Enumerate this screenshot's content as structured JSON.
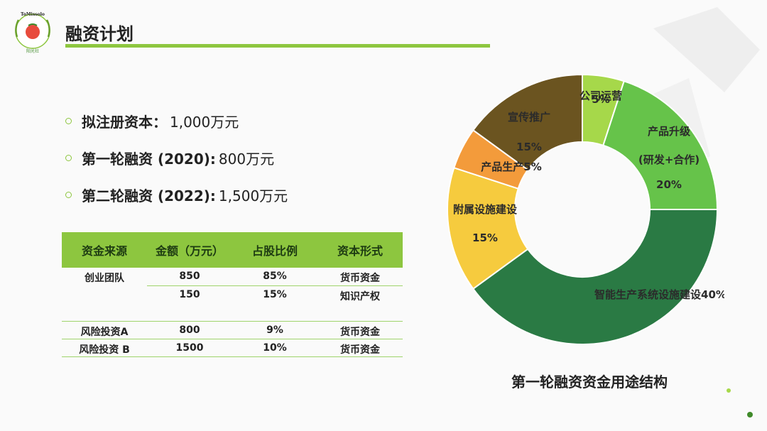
{
  "logo": {
    "top_text": "ToMissolo",
    "bottom_text": "阳光社"
  },
  "page": {
    "title": "融资计划"
  },
  "bullets": [
    {
      "label": "拟注册资本：",
      "value": "1,000万元"
    },
    {
      "label": "第一轮融资 (2020):",
      "value": "800万元"
    },
    {
      "label": "第二轮融资 (2022):",
      "value": "1,500万元"
    }
  ],
  "table": {
    "headers": [
      "资金来源",
      "金额（万元）",
      "占股比例",
      "资本形式"
    ],
    "rows": [
      {
        "source": "创业团队",
        "amount": "850",
        "ratio": "85%",
        "form": "货币资金"
      },
      {
        "source": "",
        "amount": "150",
        "ratio": "15%",
        "form": "知识产权"
      },
      {
        "source": "风险投资A",
        "amount": "800",
        "ratio": "9%",
        "form": "货币资金"
      },
      {
        "source": "风险投资 B",
        "amount": "1500",
        "ratio": "10%",
        "form": "货币资金"
      }
    ]
  },
  "chart_data": {
    "type": "pie",
    "title": "第一轮融资资金用途结构",
    "donut": true,
    "slices": [
      {
        "label_lines": [
          "公司运营",
          "5%"
        ],
        "value": 5,
        "color": "#a6d84a"
      },
      {
        "label_lines": [
          "产品升级",
          "(研发+合作)",
          "20%"
        ],
        "value": 20,
        "color": "#66c34a"
      },
      {
        "label_lines": [
          "智能生产系统设施建设40%"
        ],
        "value": 40,
        "color": "#2a7a44"
      },
      {
        "label_lines": [
          "附属设施建设",
          "15%"
        ],
        "value": 15,
        "color": "#f6cb3e"
      },
      {
        "label_lines": [
          "产品生产5%"
        ],
        "value": 5,
        "color": "#f39b3b"
      },
      {
        "label_lines": [
          "宣传推广",
          "15%"
        ],
        "value": 15,
        "color": "#6b5420"
      }
    ],
    "legend": "none"
  }
}
